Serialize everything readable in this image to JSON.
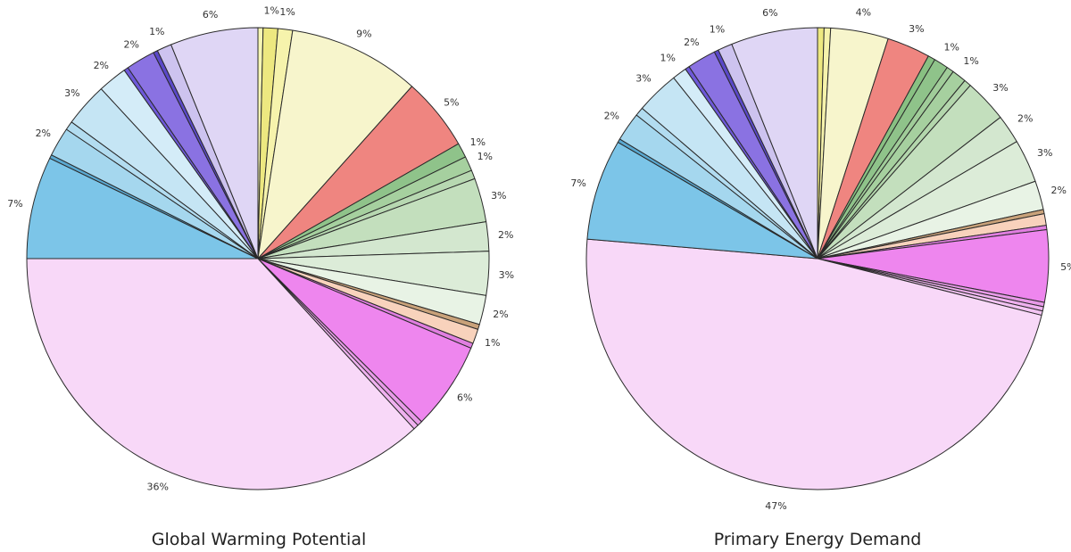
{
  "chart_data": [
    {
      "type": "pie",
      "title": "Global Warming Potential",
      "slices": [
        {
          "value": 0.35,
          "color": "#f6f6b4"
        },
        {
          "value": 1.0,
          "color": "#ede880",
          "label": "1%"
        },
        {
          "value": 1.0,
          "color": "#f6f3ac",
          "label": "1%"
        },
        {
          "value": 9.0,
          "color": "#f7f5cc",
          "label": "9%"
        },
        {
          "value": 5.0,
          "color": "#ef8580",
          "label": "5%"
        },
        {
          "value": 1.0,
          "color": "#8fc38a",
          "label": "1%"
        },
        {
          "value": 1.0,
          "color": "#a6d09f",
          "label": "1%"
        },
        {
          "value": 0.6,
          "color": "#b7d8b1"
        },
        {
          "value": 3.0,
          "color": "#c3dfbd",
          "label": "3%"
        },
        {
          "value": 2.0,
          "color": "#d3e7cf",
          "label": "2%"
        },
        {
          "value": 3.0,
          "color": "#dcecd8",
          "label": "3%"
        },
        {
          "value": 2.0,
          "color": "#e8f3e5",
          "label": "2%"
        },
        {
          "value": 0.35,
          "color": "#c9a27a"
        },
        {
          "value": 1.0,
          "color": "#f8d2bc",
          "label": "1%"
        },
        {
          "value": 0.35,
          "color": "#e07ee0"
        },
        {
          "value": 6.0,
          "color": "#ee86ee",
          "label": "6%"
        },
        {
          "value": 0.35,
          "color": "#e79ae7"
        },
        {
          "value": 0.35,
          "color": "#efb1ef"
        },
        {
          "value": 36.0,
          "color": "#f8d8f8",
          "label": "36%"
        },
        {
          "value": 7.0,
          "color": "#7cc5e8",
          "label": "7%"
        },
        {
          "value": 0.25,
          "color": "#5aa8d0"
        },
        {
          "value": 2.0,
          "color": "#a5d7ee",
          "label": "2%"
        },
        {
          "value": 0.6,
          "color": "#b2dcf0"
        },
        {
          "value": 3.0,
          "color": "#c5e5f4",
          "label": "3%"
        },
        {
          "value": 2.0,
          "color": "#d4ecf8",
          "label": "2%"
        },
        {
          "value": 0.3,
          "color": "#6d58d8"
        },
        {
          "value": 2.0,
          "color": "#8a72e2",
          "label": "2%"
        },
        {
          "value": 0.3,
          "color": "#5a48c8"
        },
        {
          "value": 1.0,
          "color": "#cdc3ef",
          "label": "1%"
        },
        {
          "value": 6.0,
          "color": "#dfd6f5",
          "label": "6%"
        }
      ]
    },
    {
      "type": "pie",
      "title": "Primary Energy Demand",
      "slices": [
        {
          "value": 0.45,
          "color": "#ede880"
        },
        {
          "value": 0.45,
          "color": "#f6f3ac"
        },
        {
          "value": 4.0,
          "color": "#f7f5cc",
          "label": "4%"
        },
        {
          "value": 3.0,
          "color": "#ef8580",
          "label": "3%"
        },
        {
          "value": 0.5,
          "color": "#88c082"
        },
        {
          "value": 1.0,
          "color": "#8fc38a",
          "label": "1%"
        },
        {
          "value": 0.5,
          "color": "#a0cc99"
        },
        {
          "value": 1.0,
          "color": "#a6d09f",
          "label": "1%"
        },
        {
          "value": 0.5,
          "color": "#b3d6ac"
        },
        {
          "value": 3.0,
          "color": "#c3dfbd",
          "label": "3%"
        },
        {
          "value": 2.0,
          "color": "#d3e7cf",
          "label": "2%"
        },
        {
          "value": 3.0,
          "color": "#dcecd8",
          "label": "3%"
        },
        {
          "value": 2.0,
          "color": "#e8f3e5",
          "label": "2%"
        },
        {
          "value": 0.3,
          "color": "#c9a27a"
        },
        {
          "value": 0.8,
          "color": "#f8d2bc"
        },
        {
          "value": 0.3,
          "color": "#e07ee0"
        },
        {
          "value": 5.0,
          "color": "#ee86ee",
          "label": "5%"
        },
        {
          "value": 0.3,
          "color": "#e79ae7"
        },
        {
          "value": 0.3,
          "color": "#efb1ef"
        },
        {
          "value": 0.3,
          "color": "#f3c4f3"
        },
        {
          "value": 47.0,
          "color": "#f8d8f8",
          "label": "47%"
        },
        {
          "value": 7.0,
          "color": "#7cc5e8",
          "label": "7%"
        },
        {
          "value": 0.25,
          "color": "#5aa8d0"
        },
        {
          "value": 2.0,
          "color": "#a5d7ee",
          "label": "2%"
        },
        {
          "value": 0.6,
          "color": "#b2dcf0"
        },
        {
          "value": 3.0,
          "color": "#c5e5f4",
          "label": "3%"
        },
        {
          "value": 1.0,
          "color": "#d4ecf8",
          "label": "1%"
        },
        {
          "value": 0.3,
          "color": "#6d58d8"
        },
        {
          "value": 2.0,
          "color": "#8a72e2",
          "label": "2%"
        },
        {
          "value": 0.3,
          "color": "#5a48c8"
        },
        {
          "value": 1.0,
          "color": "#cdc3ef",
          "label": "1%"
        },
        {
          "value": 6.0,
          "color": "#dfd6f5",
          "label": "6%"
        }
      ]
    }
  ]
}
